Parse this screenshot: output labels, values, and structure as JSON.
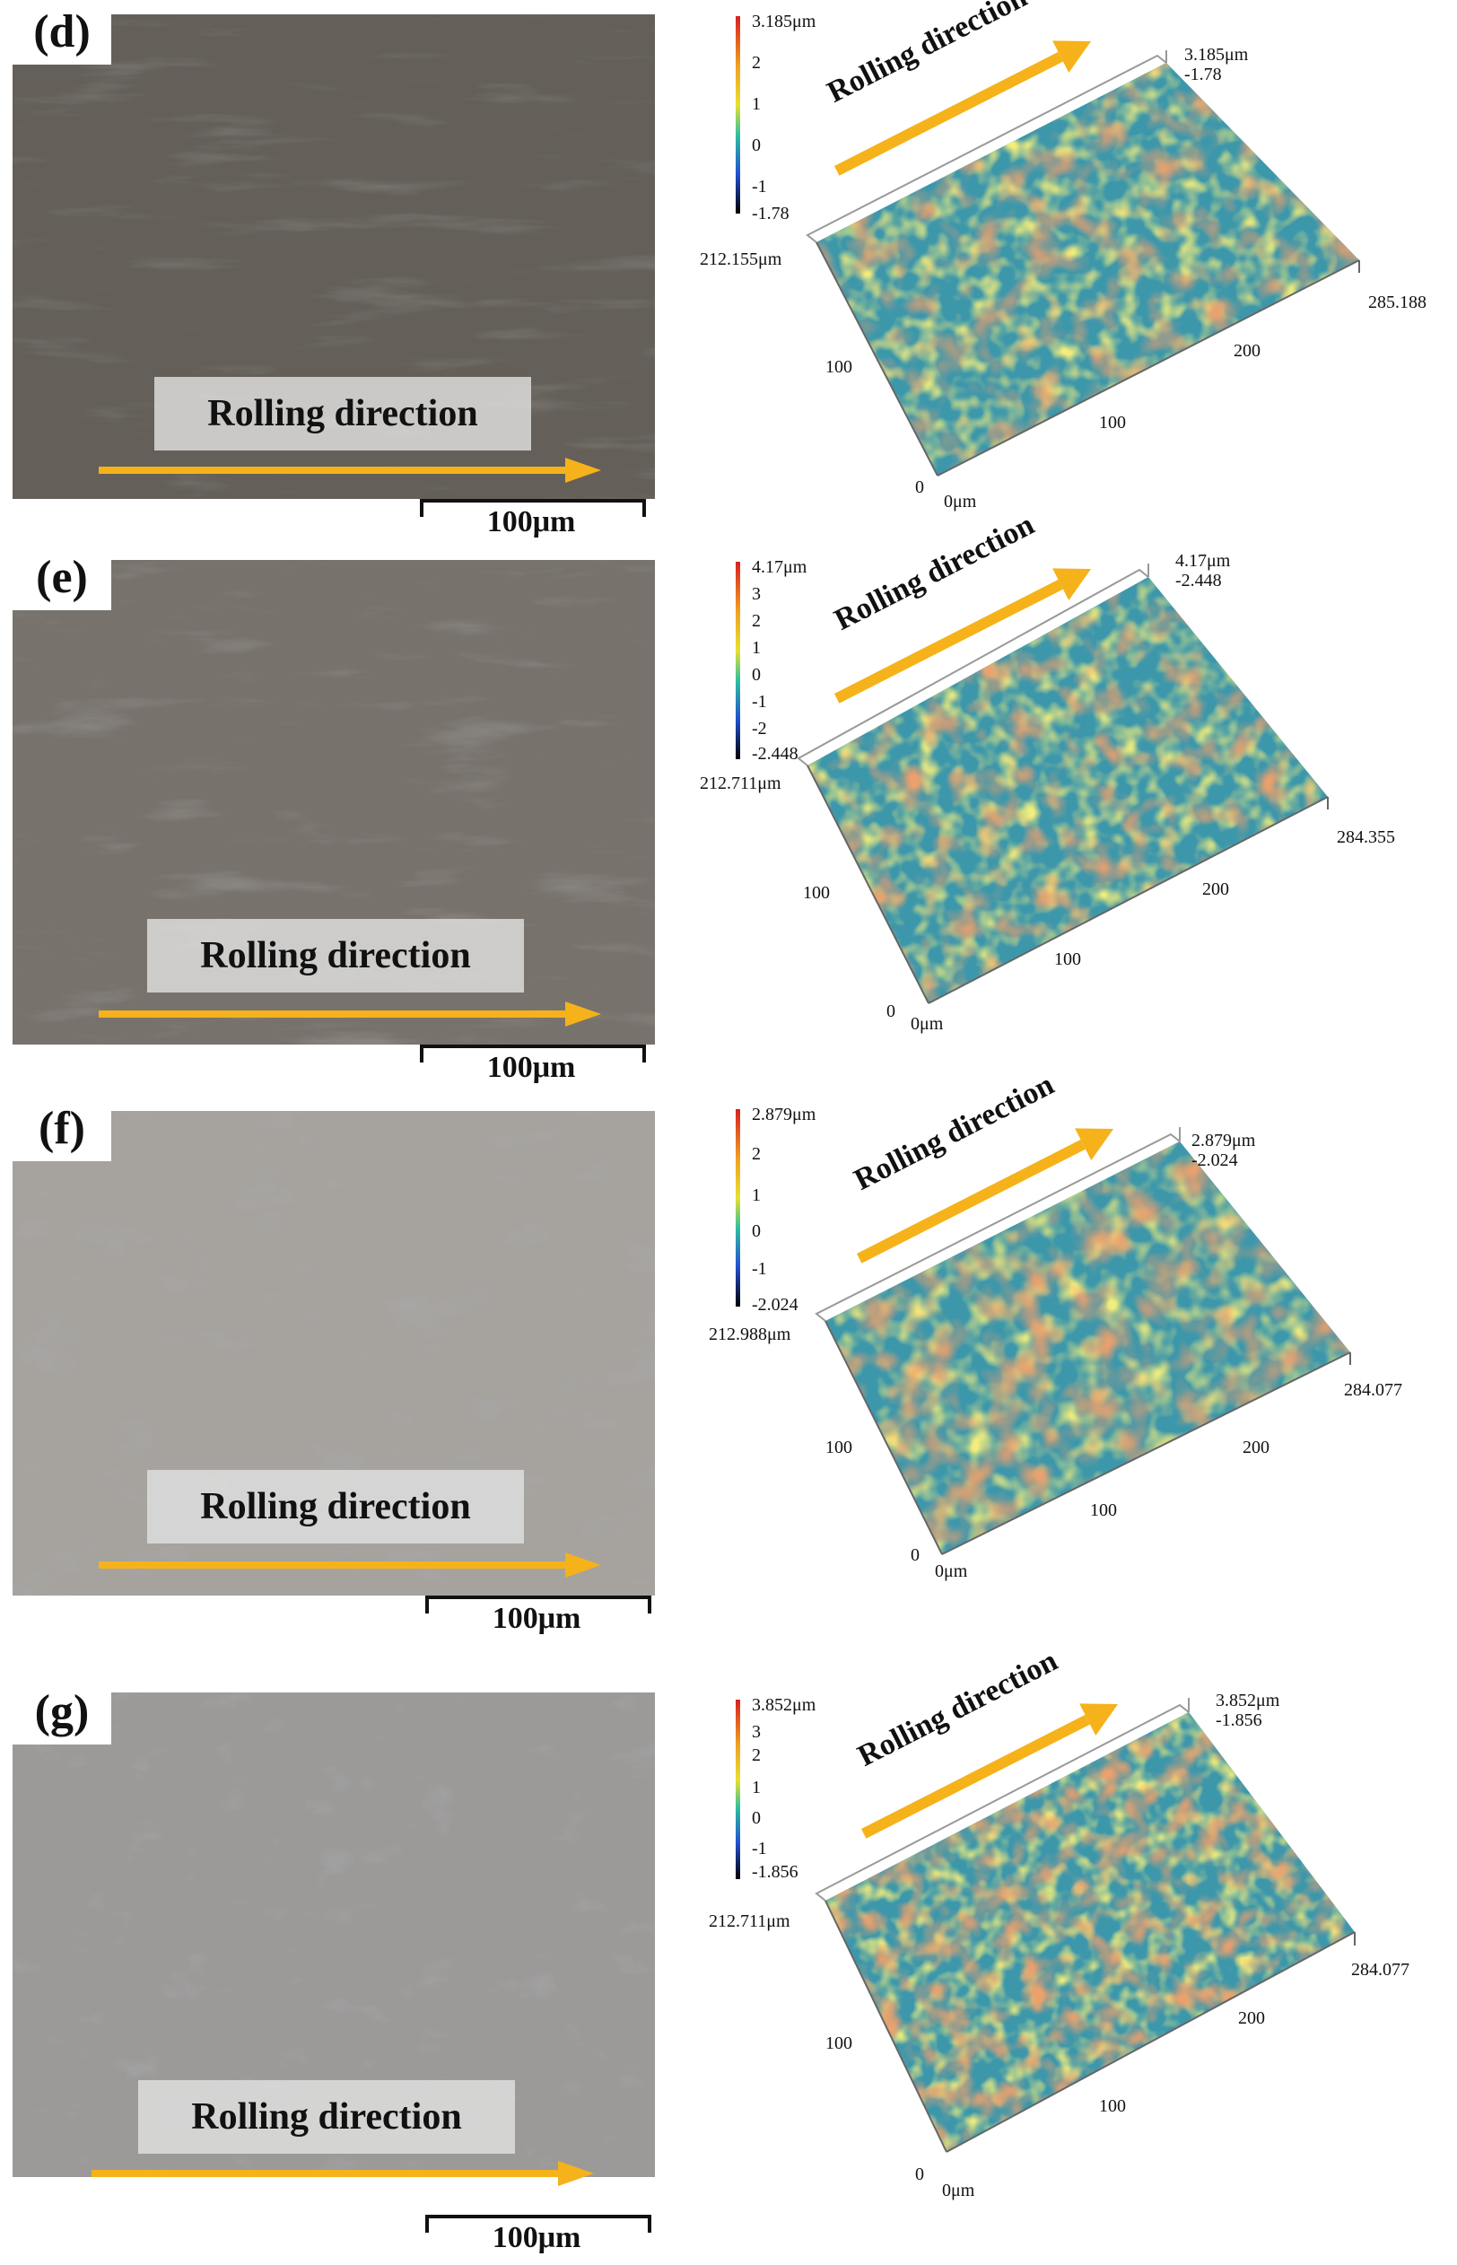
{
  "panels": [
    {
      "id": "d",
      "tag": "(d)",
      "rolling_label": "Rolling direction",
      "scale_label": "100μm",
      "profile": {
        "colorbar": [
          "3.185μm",
          "2",
          "1",
          "0",
          "-1",
          "-1.78"
        ],
        "corner_max": "3.185μm",
        "corner_min": "-1.78",
        "y_extent": "212.155μm",
        "x_extent": "285.188",
        "tick_y": "100",
        "tick_x1": "100",
        "tick_x2": "200",
        "origin_y": "0",
        "origin_x": "0μm",
        "rolling_label": "Rolling direction"
      }
    },
    {
      "id": "e",
      "tag": "(e)",
      "rolling_label": "Rolling direction",
      "scale_label": "100μm",
      "profile": {
        "colorbar": [
          "4.17μm",
          "3",
          "2",
          "1",
          "0",
          "-1",
          "-2",
          "-2.448"
        ],
        "corner_max": "4.17μm",
        "corner_min": "-2.448",
        "y_extent": "212.711μm",
        "x_extent": "284.355",
        "tick_y": "100",
        "tick_x1": "100",
        "tick_x2": "200",
        "origin_y": "0",
        "origin_x": "0μm",
        "rolling_label": "Rolling direction"
      }
    },
    {
      "id": "f",
      "tag": "(f)",
      "rolling_label": "Rolling direction",
      "scale_label": "100μm",
      "profile": {
        "colorbar": [
          "2.879μm",
          "2",
          "1",
          "0",
          "-1",
          "-2.024"
        ],
        "corner_max": "2.879μm",
        "corner_min": "-2.024",
        "y_extent": "212.988μm",
        "x_extent": "284.077",
        "tick_y": "100",
        "tick_x1": "100",
        "tick_x2": "200",
        "origin_y": "0",
        "origin_x": "0μm",
        "rolling_label": "Rolling direction"
      }
    },
    {
      "id": "g",
      "tag": "(g)",
      "rolling_label": "Rolling direction",
      "scale_label": "100μm",
      "profile": {
        "colorbar": [
          "3.852μm",
          "3",
          "2",
          "1",
          "0",
          "-1",
          "-1.856"
        ],
        "corner_max": "3.852μm",
        "corner_min": "-1.856",
        "y_extent": "212.711μm",
        "x_extent": "284.077",
        "tick_y": "100",
        "tick_x1": "100",
        "tick_x2": "200",
        "origin_y": "0",
        "origin_x": "0μm",
        "rolling_label": "Rolling direction"
      }
    }
  ],
  "colors": {
    "arrow": "#F5B21A",
    "surface_blue": "#3A5FC8",
    "surface_green": "#3DBF8A",
    "surface_yellow": "#E8D43A",
    "surface_red": "#D8402A"
  }
}
